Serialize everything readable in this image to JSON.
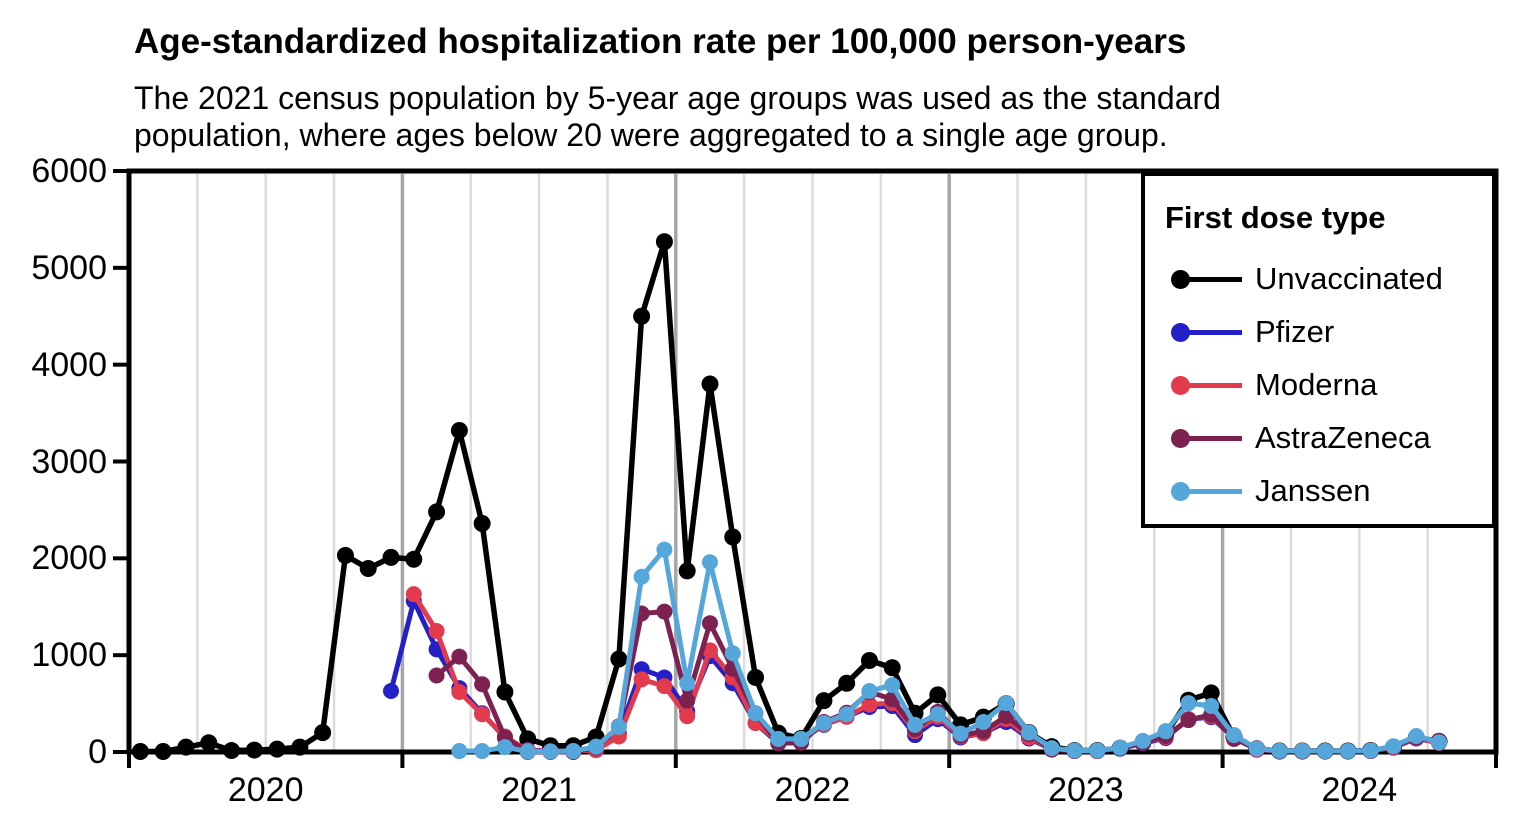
{
  "chart_data": {
    "type": "line",
    "title": "Age-standardized hospitalization rate per 100,000 person-years",
    "subtitle_line1": "The 2021 census population by 5-year age groups was used as the standard",
    "subtitle_line2": "population, where ages below 20 were aggregated to a single age group.",
    "ylabel": "",
    "xlabel": "",
    "ylim": [
      0,
      6000
    ],
    "y_ticks": [
      "0",
      "1000",
      "2000",
      "3000",
      "4000",
      "5000",
      "6000"
    ],
    "x_tick_years": [
      "2020",
      "2021",
      "2022",
      "2023",
      "2024"
    ],
    "x_unit": "month",
    "grid": "vertical quarterly gridlines, darker at January",
    "legend_position": "top-right-inside",
    "legend_title": "First dose type",
    "colors": {
      "grid_minor": "#DCDCDC",
      "grid_major": "#A6A6A6",
      "axis": "#000000",
      "background": "#FFFFFF"
    },
    "months": [
      "2020-01",
      "2020-02",
      "2020-03",
      "2020-04",
      "2020-05",
      "2020-06",
      "2020-07",
      "2020-08",
      "2020-09",
      "2020-10",
      "2020-11",
      "2020-12",
      "2021-01",
      "2021-02",
      "2021-03",
      "2021-04",
      "2021-05",
      "2021-06",
      "2021-07",
      "2021-08",
      "2021-09",
      "2021-10",
      "2021-11",
      "2021-12",
      "2022-01",
      "2022-02",
      "2022-03",
      "2022-04",
      "2022-05",
      "2022-06",
      "2022-07",
      "2022-08",
      "2022-09",
      "2022-10",
      "2022-11",
      "2022-12",
      "2023-01",
      "2023-02",
      "2023-03",
      "2023-04",
      "2023-05",
      "2023-06",
      "2023-07",
      "2023-08",
      "2023-09",
      "2023-10",
      "2023-11",
      "2023-12",
      "2024-01",
      "2024-02",
      "2024-03",
      "2024-04",
      "2024-05",
      "2024-06",
      "2024-07",
      "2024-08",
      "2024-09",
      "2024-10"
    ],
    "series": [
      {
        "name": "Unvaccinated",
        "color": "#000000",
        "values": [
          5,
          5,
          50,
          95,
          15,
          20,
          30,
          50,
          200,
          2030,
          1895,
          2010,
          1990,
          2480,
          3320,
          2360,
          620,
          135,
          65,
          65,
          155,
          960,
          4500,
          5270,
          1870,
          3800,
          2220,
          770,
          195,
          140,
          530,
          710,
          945,
          870,
          400,
          590,
          280,
          360,
          500,
          200,
          55,
          15,
          15,
          40,
          95,
          185,
          535,
          610,
          155,
          30,
          10,
          10,
          10,
          10,
          15,
          50,
          150,
          110
        ]
      },
      {
        "name": "Pfizer",
        "color": "#2320C8",
        "values": [
          null,
          null,
          null,
          null,
          null,
          null,
          null,
          null,
          null,
          null,
          null,
          630,
          1560,
          1060,
          660,
          400,
          150,
          20,
          10,
          10,
          20,
          190,
          855,
          770,
          420,
          990,
          710,
          300,
          90,
          125,
          280,
          365,
          465,
          475,
          175,
          340,
          150,
          195,
          310,
          140,
          30,
          10,
          10,
          35,
          90,
          145,
          340,
          360,
          145,
          25,
          10,
          10,
          10,
          10,
          10,
          45,
          140,
          95
        ]
      },
      {
        "name": "Moderna",
        "color": "#E23B4E",
        "values": [
          null,
          null,
          null,
          null,
          null,
          null,
          null,
          null,
          null,
          null,
          null,
          null,
          1630,
          1250,
          620,
          390,
          160,
          15,
          5,
          10,
          20,
          160,
          750,
          680,
          370,
          1050,
          770,
          300,
          110,
          125,
          285,
          365,
          490,
          505,
          215,
          365,
          160,
          195,
          340,
          150,
          35,
          12,
          12,
          40,
          95,
          155,
          340,
          370,
          150,
          28,
          10,
          10,
          10,
          10,
          12,
          48,
          145,
          95
        ]
      },
      {
        "name": "AstraZeneca",
        "color": "#7C2150",
        "values": [
          null,
          null,
          null,
          null,
          null,
          null,
          null,
          null,
          null,
          null,
          null,
          null,
          null,
          790,
          985,
          700,
          150,
          0,
          0,
          0,
          45,
          265,
          1430,
          1450,
          530,
          1330,
          860,
          400,
          90,
          95,
          310,
          405,
          620,
          545,
          235,
          415,
          170,
          215,
          370,
          185,
          25,
          15,
          15,
          40,
          95,
          165,
          330,
          385,
          135,
          40,
          10,
          15,
          10,
          10,
          15,
          55,
          150,
          115
        ]
      },
      {
        "name": "Janssen",
        "color": "#55A7DB",
        "values": [
          null,
          null,
          null,
          null,
          null,
          null,
          null,
          null,
          null,
          null,
          null,
          null,
          null,
          null,
          10,
          10,
          50,
          5,
          5,
          10,
          55,
          260,
          1810,
          2090,
          710,
          1960,
          1020,
          400,
          135,
          135,
          300,
          390,
          630,
          690,
          280,
          390,
          190,
          310,
          505,
          200,
          40,
          15,
          15,
          45,
          115,
          215,
          505,
          475,
          175,
          35,
          12,
          12,
          10,
          10,
          15,
          60,
          165,
          100
        ]
      }
    ]
  }
}
